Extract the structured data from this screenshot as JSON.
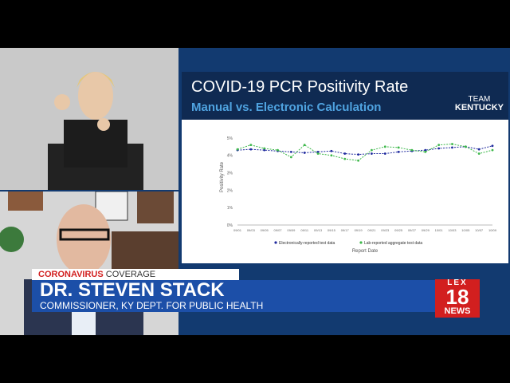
{
  "slide": {
    "title": "COVID-19 PCR Positivity Rate",
    "subtitle": "Manual vs. Electronic Calculation",
    "brand_line1": "TEAM",
    "brand_line2": "KENTUCKY"
  },
  "chart_data": {
    "type": "line",
    "xlabel": "Report Date",
    "ylabel": "Positivity Rate",
    "x": [
      "09/01",
      "09/03",
      "09/05",
      "09/07",
      "09/09",
      "09/11",
      "09/13",
      "09/15",
      "09/17",
      "09/19",
      "09/21",
      "09/23",
      "09/25",
      "09/27",
      "09/29",
      "10/01",
      "10/03",
      "10/05",
      "10/07",
      "10/09"
    ],
    "series": [
      {
        "name": "Electronically-reported test data",
        "color": "#1f2a9e",
        "values": [
          4.3,
          4.35,
          4.3,
          4.25,
          4.2,
          4.15,
          4.2,
          4.25,
          4.1,
          4.05,
          4.1,
          4.1,
          4.2,
          4.25,
          4.3,
          4.4,
          4.45,
          4.5,
          4.35,
          4.55
        ]
      },
      {
        "name": "Lab-reported aggregate test data",
        "color": "#3db84a",
        "values": [
          4.35,
          4.6,
          4.4,
          4.3,
          3.9,
          4.6,
          4.1,
          4.0,
          3.8,
          3.7,
          4.3,
          4.5,
          4.45,
          4.3,
          4.2,
          4.6,
          4.65,
          4.5,
          4.1,
          4.3
        ]
      }
    ],
    "ylim": [
      0,
      5.5
    ],
    "yticks": [
      "0%",
      "1%",
      "2%",
      "3%",
      "4%",
      "5%"
    ]
  },
  "lower_third": {
    "tag_red": "CORONAVIRUS",
    "tag_gray": "COVERAGE",
    "name": "DR. STEVEN STACK",
    "title": "COMMISSIONER, KY DEPT. FOR PUBLIC HEALTH"
  },
  "logo": {
    "line1": "LEX",
    "line2": "18",
    "line3": "NEWS"
  },
  "colors": {
    "slide_header": "#0f2a52",
    "accent_red": "#d21f1f",
    "name_bar": "#1c4fa8"
  }
}
